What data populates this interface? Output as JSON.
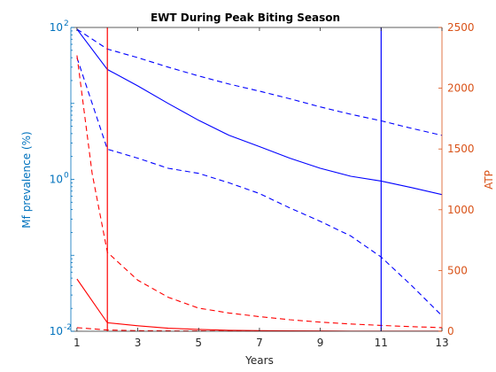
{
  "chart_data": {
    "type": "line",
    "title": "EWT During Peak Biting Season",
    "xlabel": "Years",
    "ylabel_left": "Mf prevalence (%)",
    "ylabel_right": "ATP",
    "xlim": [
      0.8,
      13
    ],
    "xticks": [
      1,
      3,
      5,
      7,
      9,
      11,
      13
    ],
    "y_left": {
      "scale": "log",
      "lim": [
        0.01,
        100
      ],
      "ticks": [
        0.01,
        1,
        100
      ],
      "tick_labels": [
        "10",
        "10",
        "10"
      ],
      "tick_exponents": [
        "-2",
        "0",
        "2"
      ]
    },
    "y_right": {
      "scale": "linear",
      "lim": [
        0,
        2500
      ],
      "ticks": [
        0,
        500,
        1000,
        1500,
        2000,
        2500
      ]
    },
    "grid": false,
    "colors": {
      "left_axis": "#0072BD",
      "right_axis": "#D95319",
      "blue_series": "#0000FF",
      "red_series": "#FF0000"
    },
    "series": [
      {
        "axis": "left",
        "color": "#0000FF",
        "style": "solid",
        "x": [
          1,
          2,
          3,
          4,
          5,
          6,
          7,
          8,
          9,
          10,
          11,
          12,
          13
        ],
        "y": [
          95,
          28,
          17,
          10,
          6,
          3.8,
          2.7,
          1.9,
          1.4,
          1.1,
          0.95,
          0.78,
          0.63
        ]
      },
      {
        "axis": "left",
        "color": "#0000FF",
        "style": "dashed",
        "x": [
          1,
          2,
          3,
          4,
          5,
          6,
          7,
          8,
          9,
          10,
          11,
          12,
          13
        ],
        "y": [
          95,
          52,
          40,
          30,
          23,
          18,
          14.5,
          11.5,
          9,
          7.2,
          5.9,
          4.7,
          3.8
        ]
      },
      {
        "axis": "left",
        "color": "#0000FF",
        "style": "dashed",
        "x": [
          1,
          2,
          3,
          4,
          5,
          6,
          7,
          8,
          9,
          10,
          11,
          12,
          13
        ],
        "y": [
          40,
          2.5,
          1.9,
          1.4,
          1.2,
          0.9,
          0.65,
          0.42,
          0.28,
          0.18,
          0.095,
          0.04,
          0.016
        ]
      },
      {
        "axis": "right",
        "color": "#FF0000",
        "style": "dashed",
        "x": [
          1,
          1.5,
          2,
          3,
          4,
          5,
          6,
          7,
          8,
          9,
          10,
          11,
          12,
          13
        ],
        "y": [
          2270,
          1300,
          650,
          420,
          280,
          190,
          150,
          120,
          95,
          75,
          60,
          48,
          38,
          30
        ]
      },
      {
        "axis": "right",
        "color": "#FF0000",
        "style": "solid",
        "x": [
          1,
          2,
          3,
          4,
          5,
          6,
          7,
          8,
          9,
          10,
          11,
          12,
          13
        ],
        "y": [
          430,
          70,
          45,
          25,
          15,
          8,
          5,
          3,
          2,
          1,
          1,
          1,
          1
        ]
      },
      {
        "axis": "right",
        "color": "#FF0000",
        "style": "dashed",
        "x": [
          1,
          2,
          3,
          4,
          5,
          6,
          7,
          8,
          9,
          10,
          11,
          12,
          13
        ],
        "y": [
          30,
          10,
          5,
          3,
          2,
          1,
          0,
          0,
          0,
          0,
          0,
          0,
          0
        ]
      }
    ],
    "vertical_lines": [
      {
        "x": 2,
        "color": "#FF0000"
      },
      {
        "x": 11,
        "color": "#0000FF"
      }
    ]
  }
}
